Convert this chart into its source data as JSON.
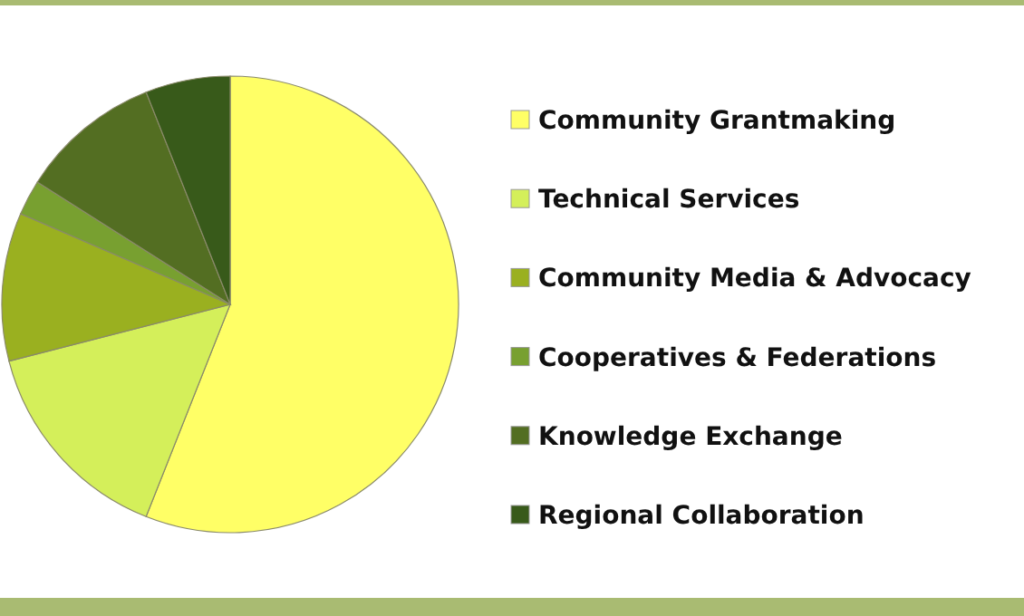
{
  "chart_data": {
    "type": "pie",
    "categories": [
      "Community Grantmaking",
      "Technical Services",
      "Community Media & Advocacy",
      "Cooperatives & Federations",
      "Knowledge Exchange",
      "Regional Collaboration"
    ],
    "values": [
      56,
      15,
      10.5,
      2.5,
      10,
      6
    ],
    "colors": [
      "#ffff66",
      "#d4ef5a",
      "#9ab020",
      "#78a030",
      "#536e22",
      "#385a1a"
    ],
    "legend": "right"
  }
}
